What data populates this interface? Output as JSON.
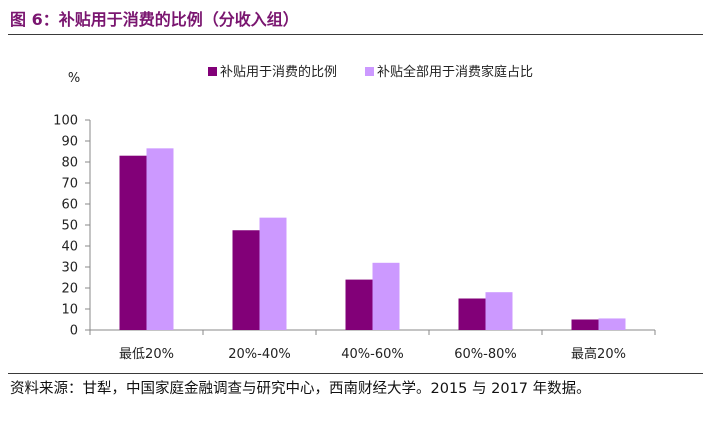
{
  "figure": {
    "title": "图 6：补贴用于消费的比例（分收入组）",
    "source": "资料来源：甘犁，中国家庭金融调查与研究中心，西南财经大学。2015 与 2017 年数据。"
  },
  "colors": {
    "series1": "#820078",
    "series2": "#cc99ff",
    "title": "#7a1670",
    "axis": "#888888"
  },
  "chart_data": {
    "type": "bar",
    "title": "补贴用于消费的比例（分收入组）",
    "ylabel": "%",
    "xlabel": "",
    "ylim": [
      0,
      100
    ],
    "yticks": [
      "0",
      "10",
      "20",
      "30",
      "40",
      "50",
      "60",
      "70",
      "80",
      "90",
      "100"
    ],
    "categories": [
      "最低20%",
      "20%-40%",
      "40%-60%",
      "60%-80%",
      "最高20%"
    ],
    "series": [
      {
        "name": "补贴用于消费的比例",
        "values": [
          83,
          47.5,
          24,
          15,
          5
        ]
      },
      {
        "name": "补贴全部用于消费家庭占比",
        "values": [
          86.5,
          53.5,
          32,
          18,
          5.5
        ]
      }
    ],
    "legend_position": "top"
  }
}
